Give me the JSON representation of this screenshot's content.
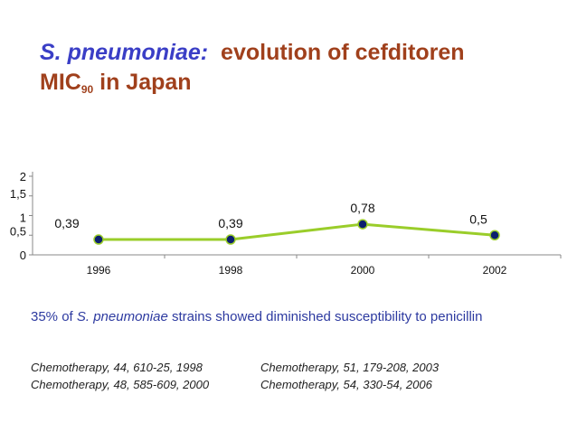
{
  "title": {
    "organism": "S. pneumoniae:",
    "text1": "evolution of cefditoren",
    "text2a": "MIC",
    "sub": "90",
    "text2b": "in Japan"
  },
  "chart_data": {
    "type": "line",
    "x": [
      "1996",
      "1998",
      "2000",
      "2002"
    ],
    "series": [
      {
        "values": [
          0.39,
          0.39,
          0.78,
          0.5
        ],
        "labels": [
          "0,39",
          "0,39",
          "0,78",
          "0,5"
        ]
      }
    ],
    "ylim": [
      0,
      2
    ],
    "yticks": [
      0,
      0.5,
      1,
      1.5,
      2
    ],
    "ytick_labels": [
      "0",
      "0,5",
      "1",
      "1,5",
      "2"
    ],
    "grid": false,
    "colors": {
      "line": "#9acd2a",
      "marker": "#0c1f6e",
      "axis": "#888888"
    }
  },
  "note": {
    "part1": "35% of",
    "organism": "S. pneumoniae",
    "part2": "strains showed diminished susceptibility to penicillin"
  },
  "references": {
    "left": [
      "Chemotherapy, 44, 610-25, 1998",
      "Chemotherapy, 48, 585-609, 2000"
    ],
    "right": [
      "Chemotherapy, 51, 179-208, 2003",
      "Chemotherapy, 54, 330-54, 2006"
    ]
  }
}
